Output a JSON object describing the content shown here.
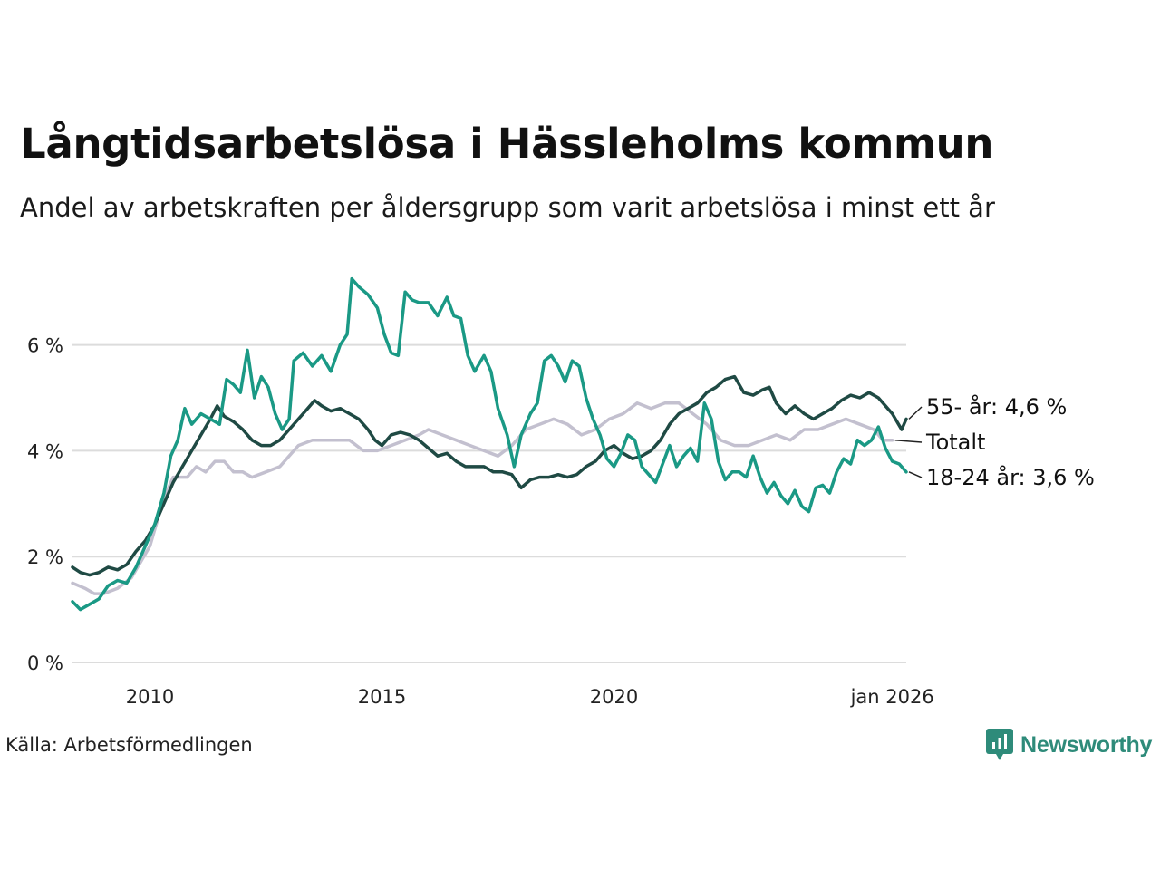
{
  "title": "Långtidsarbetslösa i Hässleholms kommun",
  "subtitle": "Andel av arbetskraften per åldersgrupp som varit arbetslösa i minst ett år",
  "source": "Källa: Arbetsförmedlingen",
  "brand": "Newsworthy",
  "colors": {
    "youth": "#1a9985",
    "older": "#1f4a44",
    "total": "#c3c0cf",
    "grid": "#dcdcdc",
    "brand": "#2e8b7a"
  },
  "chart_data": {
    "type": "line",
    "title": "Långtidsarbetslösa i Hässleholms kommun",
    "xlabel": "",
    "ylabel": "",
    "xlim": [
      2008.3,
      2026.0
    ],
    "ylim": [
      0,
      7.5
    ],
    "y_ticks": [
      0,
      2,
      4,
      6
    ],
    "y_tick_labels": [
      "0 %",
      "2 %",
      "4 %",
      "6 %"
    ],
    "x_ticks": [
      2010,
      2015,
      2020,
      2026
    ],
    "x_tick_labels": [
      "2010",
      "2015",
      "2020",
      "jan 2026"
    ],
    "series": [
      {
        "name": "Totalt",
        "key": "total",
        "end_label": "Totalt",
        "points": [
          [
            2008.33,
            1.5
          ],
          [
            2008.6,
            1.4
          ],
          [
            2008.8,
            1.3
          ],
          [
            2009.0,
            1.3
          ],
          [
            2009.3,
            1.4
          ],
          [
            2009.6,
            1.6
          ],
          [
            2009.8,
            1.9
          ],
          [
            2010.0,
            2.2
          ],
          [
            2010.2,
            2.8
          ],
          [
            2010.35,
            3.2
          ],
          [
            2010.5,
            3.5
          ],
          [
            2010.8,
            3.5
          ],
          [
            2011.0,
            3.7
          ],
          [
            2011.2,
            3.6
          ],
          [
            2011.4,
            3.8
          ],
          [
            2011.6,
            3.8
          ],
          [
            2011.8,
            3.6
          ],
          [
            2012.0,
            3.6
          ],
          [
            2012.2,
            3.5
          ],
          [
            2012.5,
            3.6
          ],
          [
            2012.8,
            3.7
          ],
          [
            2013.0,
            3.9
          ],
          [
            2013.2,
            4.1
          ],
          [
            2013.5,
            4.2
          ],
          [
            2013.8,
            4.2
          ],
          [
            2014.0,
            4.2
          ],
          [
            2014.3,
            4.2
          ],
          [
            2014.6,
            4.0
          ],
          [
            2014.9,
            4.0
          ],
          [
            2015.2,
            4.1
          ],
          [
            2015.5,
            4.2
          ],
          [
            2015.8,
            4.3
          ],
          [
            2016.0,
            4.4
          ],
          [
            2016.3,
            4.3
          ],
          [
            2016.6,
            4.2
          ],
          [
            2016.9,
            4.1
          ],
          [
            2017.2,
            4.0
          ],
          [
            2017.5,
            3.9
          ],
          [
            2017.8,
            4.1
          ],
          [
            2018.1,
            4.4
          ],
          [
            2018.4,
            4.5
          ],
          [
            2018.7,
            4.6
          ],
          [
            2019.0,
            4.5
          ],
          [
            2019.3,
            4.3
          ],
          [
            2019.6,
            4.4
          ],
          [
            2019.9,
            4.6
          ],
          [
            2020.2,
            4.7
          ],
          [
            2020.5,
            4.9
          ],
          [
            2020.8,
            4.8
          ],
          [
            2021.1,
            4.9
          ],
          [
            2021.4,
            4.9
          ],
          [
            2021.7,
            4.7
          ],
          [
            2022.0,
            4.5
          ],
          [
            2022.3,
            4.2
          ],
          [
            2022.6,
            4.1
          ],
          [
            2022.9,
            4.1
          ],
          [
            2023.2,
            4.2
          ],
          [
            2023.5,
            4.3
          ],
          [
            2023.8,
            4.2
          ],
          [
            2024.1,
            4.4
          ],
          [
            2024.4,
            4.4
          ],
          [
            2024.7,
            4.5
          ],
          [
            2025.0,
            4.6
          ],
          [
            2025.3,
            4.5
          ],
          [
            2025.6,
            4.4
          ],
          [
            2025.8,
            4.2
          ],
          [
            2026.0,
            4.2
          ]
        ]
      },
      {
        "name": "55- år",
        "key": "older",
        "end_label": "55- år: 4,6 %",
        "points": [
          [
            2008.33,
            1.8
          ],
          [
            2008.5,
            1.7
          ],
          [
            2008.7,
            1.65
          ],
          [
            2008.9,
            1.7
          ],
          [
            2009.1,
            1.8
          ],
          [
            2009.3,
            1.75
          ],
          [
            2009.5,
            1.85
          ],
          [
            2009.7,
            2.1
          ],
          [
            2009.9,
            2.3
          ],
          [
            2010.1,
            2.6
          ],
          [
            2010.3,
            3.0
          ],
          [
            2010.5,
            3.4
          ],
          [
            2010.7,
            3.7
          ],
          [
            2010.9,
            4.0
          ],
          [
            2011.1,
            4.3
          ],
          [
            2011.3,
            4.6
          ],
          [
            2011.45,
            4.85
          ],
          [
            2011.6,
            4.65
          ],
          [
            2011.8,
            4.55
          ],
          [
            2012.0,
            4.4
          ],
          [
            2012.2,
            4.2
          ],
          [
            2012.4,
            4.1
          ],
          [
            2012.6,
            4.1
          ],
          [
            2012.8,
            4.2
          ],
          [
            2013.0,
            4.4
          ],
          [
            2013.2,
            4.6
          ],
          [
            2013.4,
            4.8
          ],
          [
            2013.55,
            4.95
          ],
          [
            2013.7,
            4.85
          ],
          [
            2013.9,
            4.75
          ],
          [
            2014.1,
            4.8
          ],
          [
            2014.3,
            4.7
          ],
          [
            2014.5,
            4.6
          ],
          [
            2014.7,
            4.4
          ],
          [
            2014.85,
            4.2
          ],
          [
            2015.0,
            4.1
          ],
          [
            2015.2,
            4.3
          ],
          [
            2015.4,
            4.35
          ],
          [
            2015.6,
            4.3
          ],
          [
            2015.8,
            4.2
          ],
          [
            2016.0,
            4.05
          ],
          [
            2016.2,
            3.9
          ],
          [
            2016.4,
            3.95
          ],
          [
            2016.6,
            3.8
          ],
          [
            2016.8,
            3.7
          ],
          [
            2017.0,
            3.7
          ],
          [
            2017.2,
            3.7
          ],
          [
            2017.4,
            3.6
          ],
          [
            2017.6,
            3.6
          ],
          [
            2017.8,
            3.55
          ],
          [
            2018.0,
            3.3
          ],
          [
            2018.2,
            3.45
          ],
          [
            2018.4,
            3.5
          ],
          [
            2018.6,
            3.5
          ],
          [
            2018.8,
            3.55
          ],
          [
            2019.0,
            3.5
          ],
          [
            2019.2,
            3.55
          ],
          [
            2019.4,
            3.7
          ],
          [
            2019.6,
            3.8
          ],
          [
            2019.8,
            4.0
          ],
          [
            2020.0,
            4.1
          ],
          [
            2020.2,
            3.95
          ],
          [
            2020.4,
            3.85
          ],
          [
            2020.6,
            3.9
          ],
          [
            2020.8,
            4.0
          ],
          [
            2021.0,
            4.2
          ],
          [
            2021.2,
            4.5
          ],
          [
            2021.4,
            4.7
          ],
          [
            2021.6,
            4.8
          ],
          [
            2021.8,
            4.9
          ],
          [
            2022.0,
            5.1
          ],
          [
            2022.2,
            5.2
          ],
          [
            2022.4,
            5.35
          ],
          [
            2022.6,
            5.4
          ],
          [
            2022.8,
            5.1
          ],
          [
            2023.0,
            5.05
          ],
          [
            2023.2,
            5.15
          ],
          [
            2023.35,
            5.2
          ],
          [
            2023.5,
            4.9
          ],
          [
            2023.7,
            4.7
          ],
          [
            2023.9,
            4.85
          ],
          [
            2024.1,
            4.7
          ],
          [
            2024.3,
            4.6
          ],
          [
            2024.5,
            4.7
          ],
          [
            2024.7,
            4.8
          ],
          [
            2024.9,
            4.95
          ],
          [
            2025.1,
            5.05
          ],
          [
            2025.3,
            5.0
          ],
          [
            2025.5,
            5.1
          ],
          [
            2025.7,
            5.0
          ],
          [
            2025.85,
            4.85
          ],
          [
            2026.0,
            4.7
          ],
          [
            2026.2,
            4.4
          ],
          [
            2026.3,
            4.6
          ]
        ]
      },
      {
        "name": "18-24 år",
        "key": "youth",
        "end_label": "18-24 år: 3,6 %",
        "points": [
          [
            2008.33,
            1.15
          ],
          [
            2008.5,
            1.0
          ],
          [
            2008.7,
            1.1
          ],
          [
            2008.9,
            1.2
          ],
          [
            2009.1,
            1.45
          ],
          [
            2009.3,
            1.55
          ],
          [
            2009.5,
            1.5
          ],
          [
            2009.7,
            1.8
          ],
          [
            2009.9,
            2.2
          ],
          [
            2010.1,
            2.6
          ],
          [
            2010.3,
            3.2
          ],
          [
            2010.45,
            3.9
          ],
          [
            2010.6,
            4.2
          ],
          [
            2010.75,
            4.8
          ],
          [
            2010.9,
            4.5
          ],
          [
            2011.1,
            4.7
          ],
          [
            2011.3,
            4.6
          ],
          [
            2011.5,
            4.5
          ],
          [
            2011.65,
            5.35
          ],
          [
            2011.8,
            5.25
          ],
          [
            2011.95,
            5.1
          ],
          [
            2012.1,
            5.9
          ],
          [
            2012.25,
            5.0
          ],
          [
            2012.4,
            5.4
          ],
          [
            2012.55,
            5.2
          ],
          [
            2012.7,
            4.7
          ],
          [
            2012.85,
            4.4
          ],
          [
            2013.0,
            4.6
          ],
          [
            2013.1,
            5.7
          ],
          [
            2013.3,
            5.85
          ],
          [
            2013.5,
            5.6
          ],
          [
            2013.7,
            5.8
          ],
          [
            2013.9,
            5.5
          ],
          [
            2014.1,
            6.0
          ],
          [
            2014.25,
            6.2
          ],
          [
            2014.35,
            7.25
          ],
          [
            2014.5,
            7.1
          ],
          [
            2014.7,
            6.95
          ],
          [
            2014.9,
            6.7
          ],
          [
            2015.05,
            6.2
          ],
          [
            2015.2,
            5.85
          ],
          [
            2015.35,
            5.8
          ],
          [
            2015.5,
            7.0
          ],
          [
            2015.65,
            6.85
          ],
          [
            2015.8,
            6.8
          ],
          [
            2016.0,
            6.8
          ],
          [
            2016.2,
            6.55
          ],
          [
            2016.4,
            6.9
          ],
          [
            2016.55,
            6.55
          ],
          [
            2016.7,
            6.5
          ],
          [
            2016.85,
            5.8
          ],
          [
            2017.0,
            5.5
          ],
          [
            2017.2,
            5.8
          ],
          [
            2017.35,
            5.5
          ],
          [
            2017.5,
            4.8
          ],
          [
            2017.7,
            4.3
          ],
          [
            2017.85,
            3.7
          ],
          [
            2018.0,
            4.3
          ],
          [
            2018.2,
            4.7
          ],
          [
            2018.35,
            4.9
          ],
          [
            2018.5,
            5.7
          ],
          [
            2018.65,
            5.8
          ],
          [
            2018.8,
            5.6
          ],
          [
            2018.95,
            5.3
          ],
          [
            2019.1,
            5.7
          ],
          [
            2019.25,
            5.6
          ],
          [
            2019.4,
            5.0
          ],
          [
            2019.55,
            4.6
          ],
          [
            2019.7,
            4.3
          ],
          [
            2019.85,
            3.85
          ],
          [
            2020.0,
            3.7
          ],
          [
            2020.15,
            3.95
          ],
          [
            2020.3,
            4.3
          ],
          [
            2020.45,
            4.2
          ],
          [
            2020.6,
            3.7
          ],
          [
            2020.75,
            3.55
          ],
          [
            2020.9,
            3.4
          ],
          [
            2021.05,
            3.75
          ],
          [
            2021.2,
            4.1
          ],
          [
            2021.35,
            3.7
          ],
          [
            2021.5,
            3.9
          ],
          [
            2021.65,
            4.05
          ],
          [
            2021.8,
            3.8
          ],
          [
            2021.95,
            4.9
          ],
          [
            2022.1,
            4.6
          ],
          [
            2022.25,
            3.8
          ],
          [
            2022.4,
            3.45
          ],
          [
            2022.55,
            3.6
          ],
          [
            2022.7,
            3.6
          ],
          [
            2022.85,
            3.5
          ],
          [
            2023.0,
            3.9
          ],
          [
            2023.15,
            3.5
          ],
          [
            2023.3,
            3.2
          ],
          [
            2023.45,
            3.4
          ],
          [
            2023.6,
            3.15
          ],
          [
            2023.75,
            3.0
          ],
          [
            2023.9,
            3.25
          ],
          [
            2024.05,
            2.95
          ],
          [
            2024.2,
            2.85
          ],
          [
            2024.35,
            3.3
          ],
          [
            2024.5,
            3.35
          ],
          [
            2024.65,
            3.2
          ],
          [
            2024.8,
            3.6
          ],
          [
            2024.95,
            3.85
          ],
          [
            2025.1,
            3.75
          ],
          [
            2025.25,
            4.2
          ],
          [
            2025.4,
            4.1
          ],
          [
            2025.55,
            4.2
          ],
          [
            2025.7,
            4.45
          ],
          [
            2025.85,
            4.05
          ],
          [
            2026.0,
            3.8
          ],
          [
            2026.15,
            3.75
          ],
          [
            2026.3,
            3.6
          ]
        ]
      }
    ]
  }
}
